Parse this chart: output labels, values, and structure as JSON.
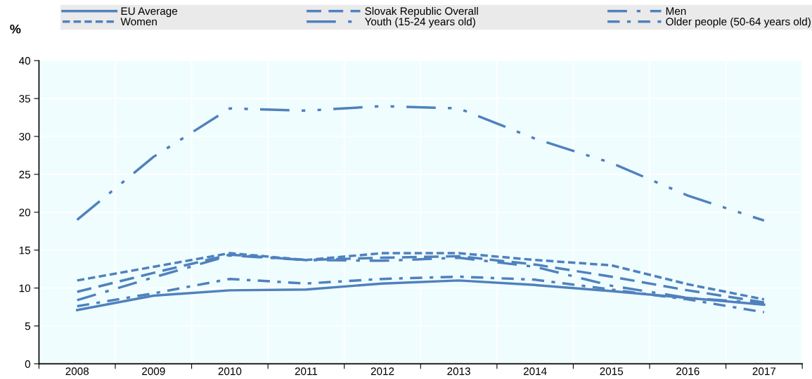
{
  "chart_data": {
    "type": "line",
    "ylabel": "%",
    "categories": [
      "2008",
      "2009",
      "2010",
      "2011",
      "2012",
      "2013",
      "2014",
      "2015",
      "2016",
      "2017"
    ],
    "ylim": [
      0,
      40
    ],
    "yticks": [
      0,
      5,
      10,
      15,
      20,
      25,
      30,
      35,
      40
    ],
    "grid": true,
    "legend": "top",
    "marker": "none",
    "series": [
      {
        "name": "EU Average",
        "color": "#4f81bd",
        "line_style": "solid",
        "values": [
          7.1,
          9.0,
          9.7,
          9.8,
          10.6,
          11.0,
          10.4,
          9.6,
          8.7,
          7.8
        ]
      },
      {
        "name": "Slovak Republic Overall",
        "color": "#4f81bd",
        "line_style": "dashed",
        "values": [
          9.5,
          12.0,
          14.4,
          13.7,
          14.0,
          14.2,
          13.1,
          11.5,
          9.7,
          8.1
        ]
      },
      {
        "name": "Men",
        "color": "#4f81bd",
        "line_style": "dashdot",
        "values": [
          8.4,
          11.4,
          14.3,
          13.7,
          13.6,
          14.0,
          12.8,
          10.3,
          8.7,
          8.0
        ]
      },
      {
        "name": "Women",
        "color": "#4f81bd",
        "line_style": "dotted",
        "values": [
          11.0,
          12.8,
          14.6,
          13.7,
          14.6,
          14.6,
          13.7,
          13.0,
          10.5,
          8.5
        ]
      },
      {
        "name": "Youth (15-24 years old)",
        "color": "#4f81bd",
        "line_style": "longdashdotdot",
        "values": [
          19.0,
          27.3,
          33.7,
          33.4,
          34.0,
          33.7,
          29.7,
          26.5,
          22.2,
          18.9
        ]
      },
      {
        "name": "Older people (50-64 years old)",
        "color": "#4f81bd",
        "line_style": "shortdashdot",
        "values": [
          7.6,
          9.3,
          11.2,
          10.6,
          11.2,
          11.5,
          11.1,
          9.8,
          8.5,
          6.8
        ]
      }
    ]
  }
}
